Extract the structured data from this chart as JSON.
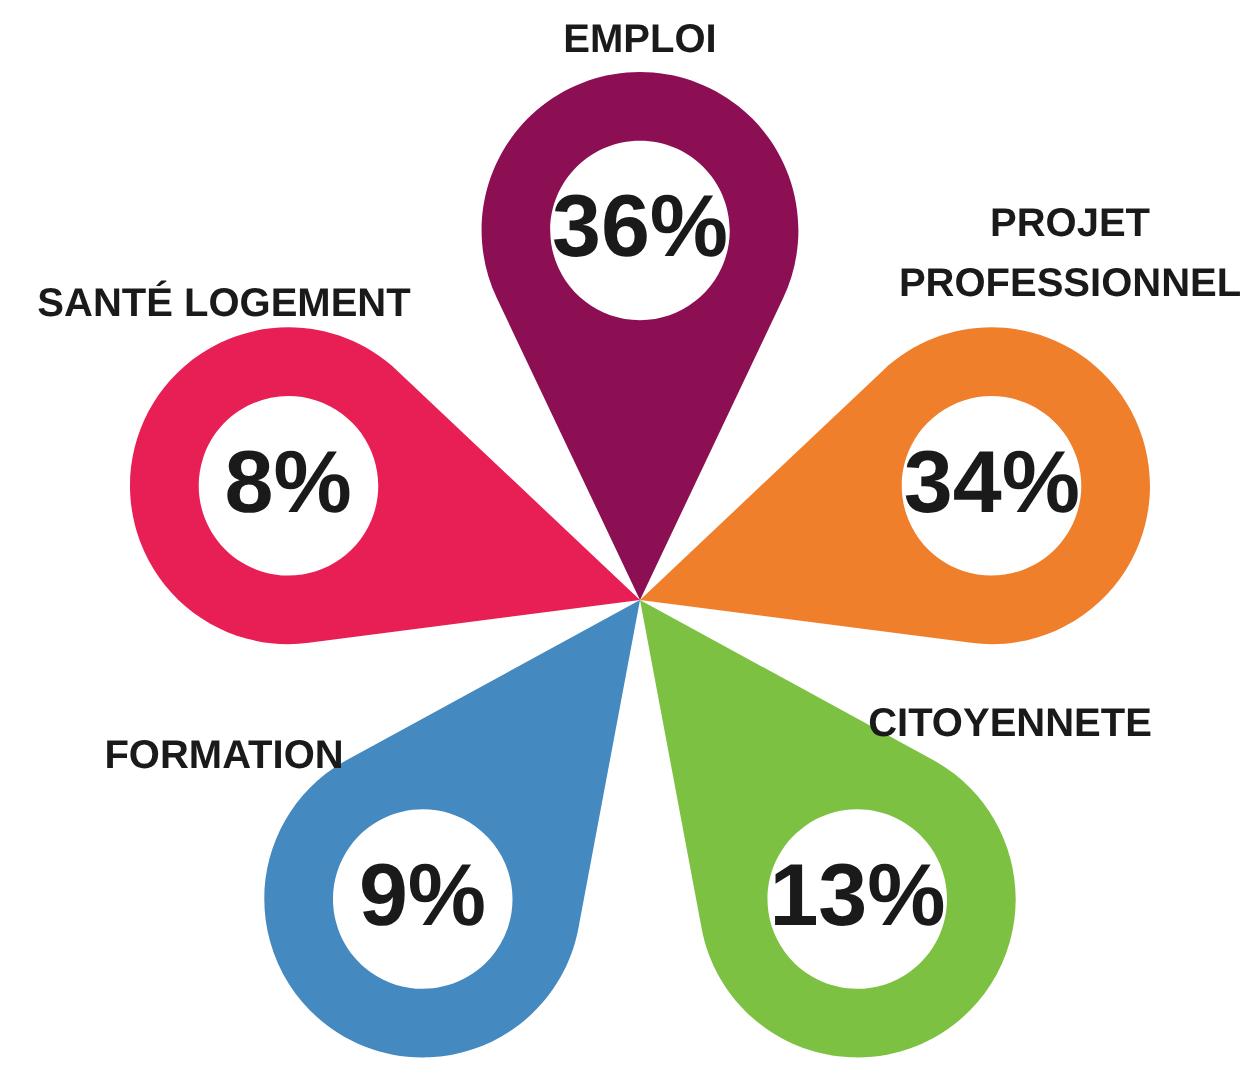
{
  "chart_data": {
    "type": "other",
    "categories": [
      "EMPLOI",
      "PROJET PROFESSIONNEL",
      "CITOYENNETE",
      "FORMATION",
      "SANTÉ LOGEMENT"
    ],
    "values": [
      36,
      34,
      13,
      9,
      8
    ],
    "value_labels": [
      "36%",
      "34%",
      "13%",
      "9%",
      "8%"
    ],
    "colors": [
      "#8b0f52",
      "#f07f2c",
      "#7dc142",
      "#4489bf",
      "#e81f55"
    ]
  }
}
